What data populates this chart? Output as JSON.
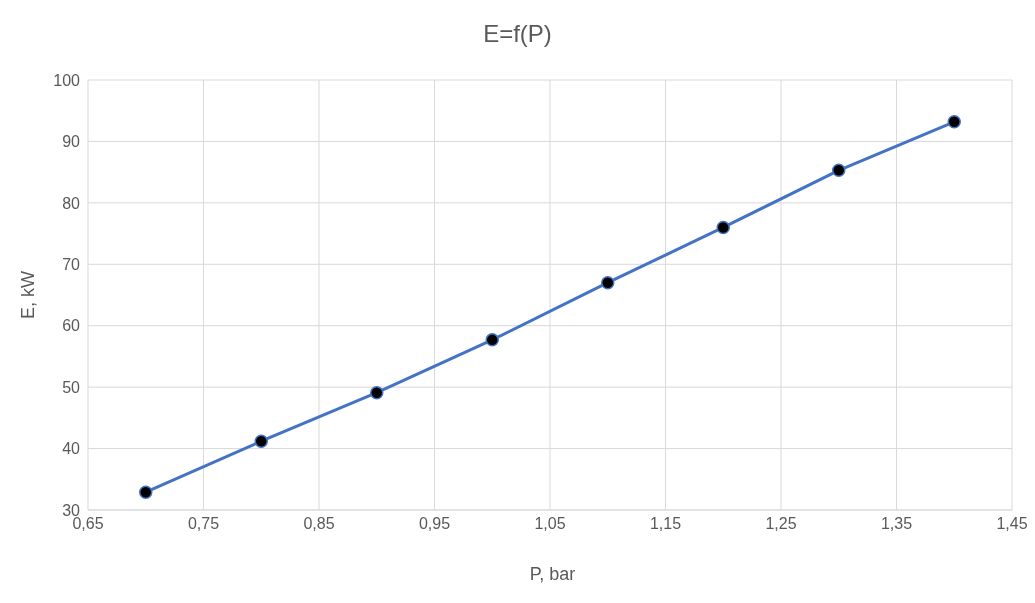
{
  "chart_data": {
    "type": "line",
    "title": "E=f(P)",
    "xlabel": "P, bar",
    "ylabel": "E, kW",
    "x": [
      0.7,
      0.8,
      0.9,
      1.0,
      1.1,
      1.2,
      1.3,
      1.4
    ],
    "series": [
      {
        "color": "#4472c4",
        "values": [
          32.9,
          41.2,
          49.1,
          57.7,
          67.0,
          76.0,
          85.3,
          93.2
        ]
      }
    ],
    "xlim": [
      0.65,
      1.45
    ],
    "xticks": [
      {
        "value": 0.65,
        "label": "0,65"
      },
      {
        "value": 0.75,
        "label": "0,75"
      },
      {
        "value": 0.85,
        "label": "0,85"
      },
      {
        "value": 0.95,
        "label": "0,95"
      },
      {
        "value": 1.05,
        "label": "1,05"
      },
      {
        "value": 1.15,
        "label": "1,15"
      },
      {
        "value": 1.25,
        "label": "1,25"
      },
      {
        "value": 1.35,
        "label": "1,35"
      },
      {
        "value": 1.45,
        "label": "1,45"
      }
    ],
    "ylim": [
      30,
      100
    ],
    "yticks": [
      30,
      40,
      50,
      60,
      70,
      80,
      90,
      100
    ],
    "grid": true,
    "marker": "circle",
    "line_style": "solid"
  }
}
